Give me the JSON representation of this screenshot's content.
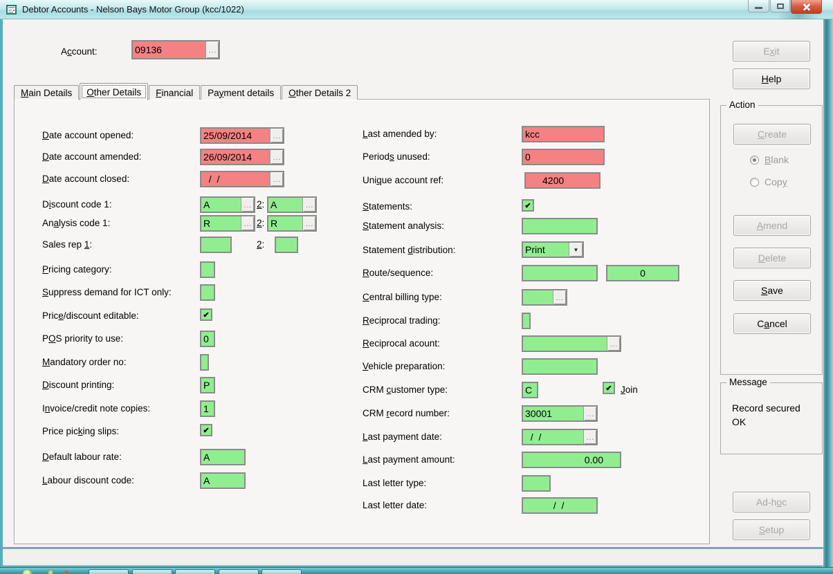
{
  "window": {
    "title": "Debtor Accounts - Nelson Bays Motor Group (kcc/1022)"
  },
  "glyphs": {
    "ellipsis": "…",
    "check": "✔",
    "dropdown_arrow": "▼"
  },
  "account": {
    "label": "A&ccount:",
    "value": "09136"
  },
  "tabs": {
    "items": [
      {
        "label": "&Main Details"
      },
      {
        "label": "&Other Details"
      },
      {
        "label": "&Financial"
      },
      {
        "label": "Pa&yment details"
      },
      {
        "label": "&Other Details 2"
      }
    ],
    "active": "Other Details"
  },
  "labels": {
    "two": "&2:",
    "join": "&Join"
  },
  "fields": {
    "date_opened": {
      "label": "&Date account opened:",
      "value": "25/09/2014"
    },
    "date_amended": {
      "label": "&Date account amended:",
      "value": "26/09/2014"
    },
    "date_closed": {
      "label": "&Date account closed:",
      "value": "  /  /"
    },
    "discount_code": {
      "label": "D&iscount code 1:",
      "value1": "A",
      "value2": "A"
    },
    "analysis_code": {
      "label": "An&alysis code 1:",
      "value1": "R",
      "value2": "R"
    },
    "sales_rep": {
      "label": "Sales rep &1:",
      "value1": "",
      "value2": ""
    },
    "pricing_category": {
      "label": "&Pricing category:",
      "value": ""
    },
    "suppress_demand": {
      "label": "&Suppress demand for ICT only:",
      "value": ""
    },
    "price_discount_editable": {
      "label": "Pric&e/discount editable:",
      "checked": true
    },
    "pos_priority": {
      "label": "P&OS priority to use:",
      "value": "0"
    },
    "mandatory_order": {
      "label": "&Mandatory order no:",
      "value": ""
    },
    "discount_printing": {
      "label": "&Discount printing:",
      "value": "P"
    },
    "invoice_copies": {
      "label": "I&nvoice/credit note copies:",
      "value": "1"
    },
    "price_picking_slips": {
      "label": "Price pic&king slips:",
      "checked": true
    },
    "default_labour_rate": {
      "label": "&Default labour rate:",
      "value": "A"
    },
    "labour_discount_code": {
      "label": "&Labour discount code:",
      "value": "A"
    },
    "last_amended_by": {
      "label": "&Last amended by:",
      "value": "kcc"
    },
    "periods_unused": {
      "label": "Period&s unused:",
      "value": "0"
    },
    "unique_account_ref": {
      "label": "Uni&que account ref:",
      "value": "4200"
    },
    "statements": {
      "label": "&Statements:",
      "checked": true
    },
    "statement_analysis": {
      "label": "&Statement analysis:",
      "value": ""
    },
    "statement_distribution": {
      "label": "Statement &distribution:",
      "value": "Print"
    },
    "route_sequence": {
      "label": "&Route/sequence:",
      "value1": "",
      "value2": "0"
    },
    "central_billing_type": {
      "label": "&Central billing type:",
      "value": ""
    },
    "reciprocal_trading": {
      "label": "&Reciprocal trading:",
      "value": ""
    },
    "reciprocal_account": {
      "label": "&Reciprocal acount:",
      "value": ""
    },
    "vehicle_preparation": {
      "label": "&Vehicle preparation:",
      "value": ""
    },
    "crm_customer_type": {
      "label": "CRM &customer type:",
      "value": "C",
      "join_checked": true
    },
    "crm_record_number": {
      "label": "CRM &record number:",
      "value": "30001"
    },
    "last_payment_date": {
      "label": "&Last payment date:",
      "value": "  /  /"
    },
    "last_payment_amount": {
      "label": "&Last payment amount:",
      "value": "0.00"
    },
    "last_letter_type": {
      "label": "Last letter type:",
      "value": ""
    },
    "last_letter_date": {
      "label": "Last letter date:",
      "value": "  /  /"
    }
  },
  "buttons": {
    "exit": "E&xit",
    "help": "&Help",
    "adhoc": "Ad-h&oc",
    "setup": "&Setup"
  },
  "action": {
    "title": "Action",
    "create": "&Create",
    "blank": "&Blank",
    "copy": "Cop&y",
    "amend": "&Amend",
    "delete": "&Delete",
    "save": "&Save",
    "cancel": "C&ancel"
  },
  "message": {
    "title": "Message",
    "text": "Record secured OK"
  },
  "colors": {
    "field_red": "#F48282",
    "field_green": "#90EE90",
    "titlebar_teal": "#BDE7EA",
    "taskbar_teal": "#2F8D9C"
  }
}
